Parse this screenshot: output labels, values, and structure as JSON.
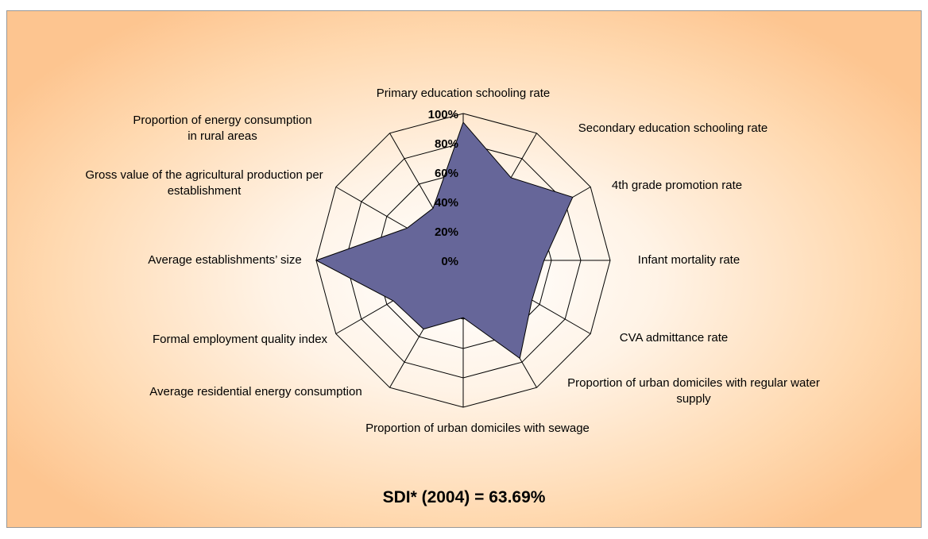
{
  "chart_data": {
    "type": "radar",
    "categories": [
      "Primary education schooling rate",
      "Secondary education schooling rate",
      "4th grade promotion rate",
      "Infant mortality rate",
      "CVA admittance rate",
      "Proportion of urban domiciles with regular water supply",
      "Proportion of urban domiciles with sewage",
      "Average residential energy consumption",
      "Formal employment quality index",
      "Average establishments’ size",
      "Gross value of the agricultural production per establishment",
      "Proportion of energy consumption in rural areas"
    ],
    "values": [
      94,
      65,
      86,
      55,
      54,
      77,
      39,
      54,
      55,
      100,
      44,
      41
    ],
    "color": "#666699",
    "ylim": [
      0,
      100
    ],
    "yticks": [
      {
        "value": 0,
        "label": "0%"
      },
      {
        "value": 20,
        "label": "20%"
      },
      {
        "value": 40,
        "label": "40%"
      },
      {
        "value": 60,
        "label": "60%"
      },
      {
        "value": 80,
        "label": "80%"
      },
      {
        "value": 100,
        "label": "100%"
      }
    ],
    "grid": true,
    "annotation": "SDI* (2004) = 63.69%"
  }
}
